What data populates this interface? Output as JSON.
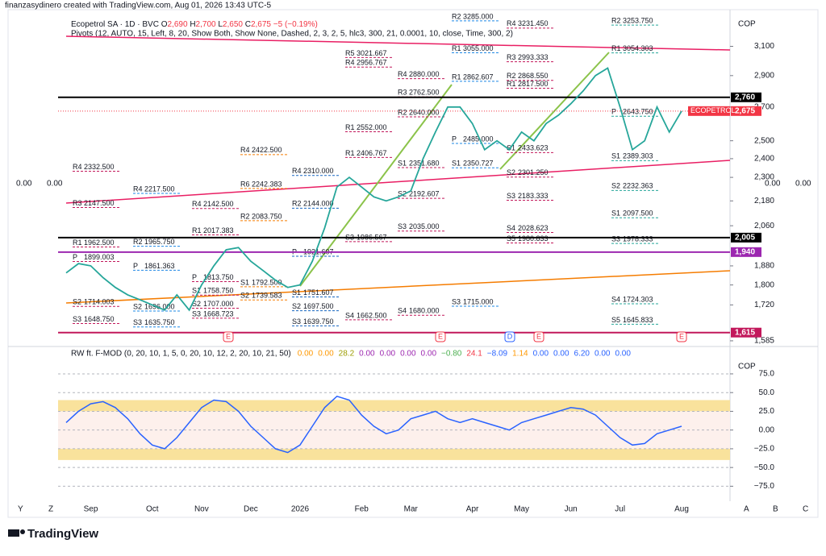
{
  "header": {
    "credit": "finanzasydinero created with TradingView.com, Aug 01, 2026 13:43 UTC-5",
    "symbol": "Ecopetrol SA · 1D · BVC",
    "open_label": "O",
    "open": "2,690",
    "high_label": "H",
    "high": "2,700",
    "low_label": "L",
    "low": "2,650",
    "close_label": "C",
    "close": "2,675",
    "change": "−5 (−0.19%)",
    "pivots_title": "Pivots (12, AUTO, 15, Left, 8, 20, Show Both, Show None, Dashed, 2, 3, 2, 5, hlc3, 300, 21, 0.0001, 10, close, Time, 300, 2)"
  },
  "side_labels": {
    "left": [
      "0.00",
      "0.00"
    ],
    "right": [
      "0.00",
      "0.00"
    ]
  },
  "axis_buttons": [
    "Y",
    "Z",
    "A",
    "B",
    "C"
  ],
  "footer": {
    "brand": "TradingView"
  },
  "chart_data": [
    {
      "type": "line",
      "currency": "COP",
      "log": true,
      "color": "#26a69a",
      "categories": [
        null,
        null,
        "Sep",
        null,
        null,
        null,
        null,
        "Oct",
        null,
        null,
        null,
        "Nov",
        null,
        null,
        null,
        "Dec",
        null,
        null,
        null,
        "2026",
        null,
        null,
        null,
        null,
        "Feb",
        null,
        null,
        null,
        "Mar",
        null,
        null,
        null,
        null,
        "Apr",
        null,
        null,
        null,
        "May",
        null,
        null,
        null,
        "Jun",
        null,
        null,
        null,
        "Jul",
        null,
        null,
        null,
        null,
        "Aug"
      ],
      "values": [
        1850,
        1890,
        1880,
        1830,
        1790,
        1760,
        1740,
        1720,
        1700,
        1760,
        1700,
        1800,
        1880,
        1950,
        1960,
        1900,
        1860,
        1820,
        1790,
        1800,
        1900,
        2050,
        2250,
        2300,
        2250,
        2200,
        2180,
        2200,
        2230,
        2400,
        2550,
        2700,
        2700,
        2600,
        2450,
        2500,
        2450,
        2550,
        2500,
        2600,
        2650,
        2720,
        2800,
        2900,
        2950,
        2700,
        2450,
        2500,
        2700,
        2550,
        2675
      ],
      "ylim": [
        1579,
        3370
      ],
      "yticks": [
        {
          "value": 3100,
          "label": "3,100"
        },
        {
          "value": 2900,
          "label": "2,900"
        },
        {
          "value": 2700,
          "label": "2,700"
        },
        {
          "value": 2500,
          "label": "2,500"
        },
        {
          "value": 2400,
          "label": "2,400"
        },
        {
          "value": 2300,
          "label": "2,300"
        },
        {
          "value": 2180,
          "label": "2,180"
        },
        {
          "value": 2060,
          "label": "2,060"
        },
        {
          "value": 1880,
          "label": "1,880"
        },
        {
          "value": 1800,
          "label": "1,800"
        },
        {
          "value": 1720,
          "label": "1,720"
        },
        {
          "value": 1585,
          "label": "1,585"
        }
      ],
      "price_labels": [
        {
          "value": 2760,
          "label": "2,760",
          "color": "#000000",
          "line": true
        },
        {
          "name": "ECOPETROL",
          "value": 2675,
          "label": "2,675",
          "color": "#f23645",
          "line": false
        },
        {
          "value": 2005,
          "label": "2,005",
          "color": "#000000",
          "line": true
        },
        {
          "value": 1940,
          "label": "1,940",
          "color": "#9c27b0",
          "line": true
        },
        {
          "value": 1615,
          "label": "1,615",
          "color": "#c2185b",
          "line": true
        }
      ],
      "pivots": [
        {
          "color": "#c2185b",
          "levels": [
            {
              "name": "R4",
              "value": 2332.5,
              "value_label": "2332.500"
            },
            {
              "name": "R3",
              "value": 2147.5,
              "value_label": "2147.500"
            },
            {
              "name": "R1",
              "value": 1962.5,
              "value_label": "1962.500"
            },
            {
              "name": "P",
              "value": 1899.003,
              "value_label": "1899.003"
            },
            {
              "name": "S2",
              "value": 1714.003,
              "value_label": "1714.003"
            },
            {
              "name": "S3",
              "value": 1648.75,
              "value_label": "1648.750"
            }
          ]
        },
        {
          "color": "#1e88e5",
          "levels": [
            {
              "name": "R4",
              "value": 2217.5,
              "value_label": "2217.500"
            },
            {
              "name": "R2",
              "value": 1965.75,
              "value_label": "1965.750"
            },
            {
              "name": "P",
              "value": 1861.363,
              "value_label": "1861.363"
            },
            {
              "name": "S2",
              "value": 1696,
              "value_label": "1696.000"
            },
            {
              "name": "S3",
              "value": 1635.75,
              "value_label": "1635.750"
            }
          ]
        },
        {
          "color": "#c2185b",
          "levels": [
            {
              "name": "R4",
              "value": 2142.5,
              "value_label": "2142.500"
            },
            {
              "name": "R1",
              "value": 2017.383,
              "value_label": "2017.383"
            },
            {
              "name": "P",
              "value": 1813.75,
              "value_label": "1813.750"
            },
            {
              "name": "S1",
              "value": 1758.75,
              "value_label": "1758.750"
            },
            {
              "name": "S2",
              "value": 1707,
              "value_label": "1707.000"
            },
            {
              "name": "S3",
              "value": 1668.723,
              "value_label": "1668.723"
            }
          ]
        },
        {
          "color": "#f57c00",
          "levels": [
            {
              "name": "R4",
              "value": 2422.5,
              "value_label": "2422.500"
            },
            {
              "name": "R6",
              "value": 2242.383,
              "value_label": "2242.383"
            },
            {
              "name": "R2",
              "value": 2083.75,
              "value_label": "2083.750"
            },
            {
              "name": "S1",
              "value": 1792.5,
              "value_label": "1792.500"
            },
            {
              "name": "S2",
              "value": 1739.583,
              "value_label": "1739.583"
            }
          ]
        },
        {
          "color": "#1565c0",
          "levels": [
            {
              "name": "R4",
              "value": 2310,
              "value_label": "2310.000"
            },
            {
              "name": "R2",
              "value": 2144,
              "value_label": "2144.000"
            },
            {
              "name": "P",
              "value": 1921.607,
              "value_label": "1921.607"
            },
            {
              "name": "S1",
              "value": 1751.607,
              "value_label": "1751.607"
            },
            {
              "name": "S2",
              "value": 1697.5,
              "value_label": "1697.500"
            },
            {
              "name": "S3",
              "value": 1639.75,
              "value_label": "1639.750"
            }
          ]
        },
        {
          "color": "#c2185b",
          "levels": [
            {
              "name": "R5",
              "value": 3021.667,
              "value_label": "3021.667"
            },
            {
              "name": "R4",
              "value": 2956.767,
              "value_label": "2956.767"
            },
            {
              "name": "R1",
              "value": 2552,
              "value_label": "2552.000"
            },
            {
              "name": "R1",
              "value": 2406.767,
              "value_label": "2406.767"
            },
            {
              "name": "S3",
              "value": 1986.567,
              "value_label": "1986.567"
            },
            {
              "name": "S4",
              "value": 1662.5,
              "value_label": "1662.500"
            }
          ]
        },
        {
          "color": "#c2185b",
          "levels": [
            {
              "name": "R4",
              "value": 2880,
              "value_label": "2880.000"
            },
            {
              "name": "R3",
              "value": 2762.5,
              "value_label": "2762.500"
            },
            {
              "name": "R2",
              "value": 2640,
              "value_label": "2640.000"
            },
            {
              "name": "S1",
              "value": 2351.68,
              "value_label": "2351.680"
            },
            {
              "name": "S2",
              "value": 2192.607,
              "value_label": "2192.607"
            },
            {
              "name": "S3",
              "value": 2035,
              "value_label": "2035.000"
            },
            {
              "name": "S4",
              "value": 1680,
              "value_label": "1680.000"
            }
          ]
        },
        {
          "color": "#1e88e5",
          "levels": [
            {
              "name": "R2",
              "value": 3285,
              "value_label": "3285.000"
            },
            {
              "name": "R1",
              "value": 3055,
              "value_label": "3055.000"
            },
            {
              "name": "R1",
              "value": 2862.607,
              "value_label": "2862.607"
            },
            {
              "name": "P",
              "value": 2485,
              "value_label": "2485.000"
            },
            {
              "name": "S1",
              "value": 2350.727,
              "value_label": "2350.727"
            },
            {
              "name": "S3",
              "value": 1715,
              "value_label": "1715.000"
            }
          ]
        },
        {
          "color": "#c2185b",
          "levels": [
            {
              "name": "R4",
              "value": 3231.45,
              "value_label": "3231.450"
            },
            {
              "name": "R3",
              "value": 2993.333,
              "value_label": "2993.333"
            },
            {
              "name": "R2",
              "value": 2868.55,
              "value_label": "2868.550"
            },
            {
              "name": "R1",
              "value": 2817.5,
              "value_label": "2817.500"
            },
            {
              "name": "S1",
              "value": 2433.623,
              "value_label": "2433.623"
            },
            {
              "name": "S2",
              "value": 2301.25,
              "value_label": "2301.250"
            },
            {
              "name": "S3",
              "value": 2183.333,
              "value_label": "2183.333"
            },
            {
              "name": "S4",
              "value": 2028.623,
              "value_label": "2028.623"
            },
            {
              "name": "S5",
              "value": 1980.833,
              "value_label": "1980.833"
            }
          ]
        },
        {
          "color": "#26a69a",
          "levels": [
            {
              "name": "R2",
              "value": 3253.75,
              "value_label": "3253.750"
            },
            {
              "name": "R1",
              "value": 3054.303,
              "value_label": "3054.303"
            },
            {
              "name": "P",
              "value": 2643.75,
              "value_label": "2643.750"
            },
            {
              "name": "S1",
              "value": 2389.303,
              "value_label": "2389.303"
            },
            {
              "name": "S2",
              "value": 2232.363,
              "value_label": "2232.363"
            },
            {
              "name": "S1",
              "value": 2097.5,
              "value_label": "2097.500"
            },
            {
              "name": "S3",
              "value": 1978.333,
              "value_label": "1978.333"
            },
            {
              "name": "S4",
              "value": 1724.303,
              "value_label": "1724.303"
            },
            {
              "name": "S5",
              "value": 1645.833,
              "value_label": "1645.833"
            }
          ]
        }
      ],
      "events": [
        "E",
        "E",
        "D",
        "E",
        "E"
      ]
    },
    {
      "type": "line",
      "title": "RW ft. F-MOD (0, 20, 10, 1, 5, 0, 20, 10, 12, 2, 20, 10, 21, 50)",
      "currency": "COP",
      "color": "#2962ff",
      "readouts": [
        {
          "text": "0.00",
          "color": "#ff9800"
        },
        {
          "text": "0.00",
          "color": "#ff9800"
        },
        {
          "text": "28.2",
          "color": "#9c9c00"
        },
        {
          "text": "0.00",
          "color": "#9c27b0"
        },
        {
          "text": "0.00",
          "color": "#9c27b0"
        },
        {
          "text": "0.00",
          "color": "#9c27b0"
        },
        {
          "text": "0.00",
          "color": "#9c27b0"
        },
        {
          "text": "−0.80",
          "color": "#4caf50"
        },
        {
          "text": "24.1",
          "color": "#f23645"
        },
        {
          "text": "−8.09",
          "color": "#2962ff"
        },
        {
          "text": "1.14",
          "color": "#ff9800"
        },
        {
          "text": "0.00",
          "color": "#2962ff"
        },
        {
          "text": "0.00",
          "color": "#2962ff"
        },
        {
          "text": "6.20",
          "color": "#2962ff"
        },
        {
          "text": "0.00",
          "color": "#2962ff"
        },
        {
          "text": "0.00",
          "color": "#2962ff"
        }
      ],
      "values": [
        10,
        25,
        35,
        38,
        30,
        15,
        -5,
        -20,
        -25,
        -10,
        10,
        30,
        40,
        38,
        25,
        5,
        -10,
        -25,
        -30,
        -20,
        5,
        30,
        45,
        40,
        20,
        5,
        -5,
        0,
        15,
        20,
        25,
        15,
        10,
        15,
        10,
        5,
        0,
        10,
        15,
        20,
        25,
        30,
        28,
        20,
        5,
        -10,
        -20,
        -18,
        -5,
        0,
        5
      ],
      "ylim": [
        -95,
        104
      ],
      "yticks": [
        {
          "value": 75,
          "label": "75.0"
        },
        {
          "value": 50,
          "label": "50.0"
        },
        {
          "value": 25,
          "label": "25.0"
        },
        {
          "value": 0,
          "label": "0.00"
        },
        {
          "value": -25,
          "label": "−25.0"
        },
        {
          "value": -50,
          "label": "−50.0"
        },
        {
          "value": -75,
          "label": "−75.0"
        }
      ],
      "zones": [
        {
          "from": 25,
          "to": 40,
          "color": "#f9e29c"
        },
        {
          "from": -25,
          "to": 25,
          "color": "#fdf0ec"
        },
        {
          "from": -40,
          "to": -25,
          "color": "#f9e29c"
        }
      ],
      "grid": true
    }
  ]
}
